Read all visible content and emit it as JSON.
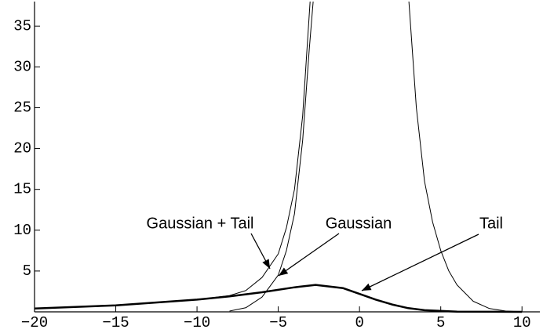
{
  "chart_data": {
    "type": "line",
    "annotations": [
      "Gaussian + Tail",
      "Gaussian",
      "Tail"
    ],
    "series": [
      {
        "name": "Gaussian + Tail",
        "color": "#000000",
        "line_width": 1,
        "x": [
          -20,
          -15,
          -10,
          -8,
          -7,
          -6,
          -5,
          -4.5,
          -4,
          -3.5,
          -3.04
        ],
        "values": [
          0.4,
          0.8,
          1.5,
          2.0,
          2.6,
          4.2,
          7.1,
          10.3,
          15,
          24,
          38
        ]
      },
      {
        "name": "Gaussian",
        "color": "#000000",
        "line_width": 1,
        "x": [
          -8,
          -7,
          -6,
          -5,
          -4.5,
          -4,
          -3.5,
          -3.1,
          -2.85,
          0,
          3.04,
          3.5,
          4,
          4.5,
          5,
          5.5,
          6,
          7,
          8,
          9,
          10
        ],
        "values": [
          0.1,
          0.5,
          1.8,
          4.5,
          7.5,
          12,
          21,
          32,
          38,
          null,
          38,
          25,
          16,
          11,
          7.5,
          5,
          3.3,
          1.3,
          0.4,
          0.1,
          0
        ]
      },
      {
        "name": "Tail",
        "color": "#000000",
        "line_width": 2.5,
        "x": [
          -20,
          -15,
          -10,
          -8,
          -6,
          -4,
          -2.7,
          -1,
          0,
          1,
          2,
          3,
          4,
          6,
          10
        ],
        "values": [
          0.4,
          0.8,
          1.5,
          1.9,
          2.4,
          3.0,
          3.3,
          2.9,
          2.2,
          1.5,
          0.9,
          0.45,
          0.2,
          0.03,
          0
        ]
      }
    ],
    "xlim": [
      -20,
      11.1
    ],
    "ylim": [
      0,
      38
    ],
    "xticks": [
      {
        "value": -20,
        "label": "−20"
      },
      {
        "value": -15,
        "label": "−15"
      },
      {
        "value": -10,
        "label": "−10"
      },
      {
        "value": -5,
        "label": "−5"
      },
      0,
      5,
      10
    ],
    "yticks": [
      5,
      10,
      15,
      20,
      25,
      30,
      35
    ],
    "grid": false
  }
}
